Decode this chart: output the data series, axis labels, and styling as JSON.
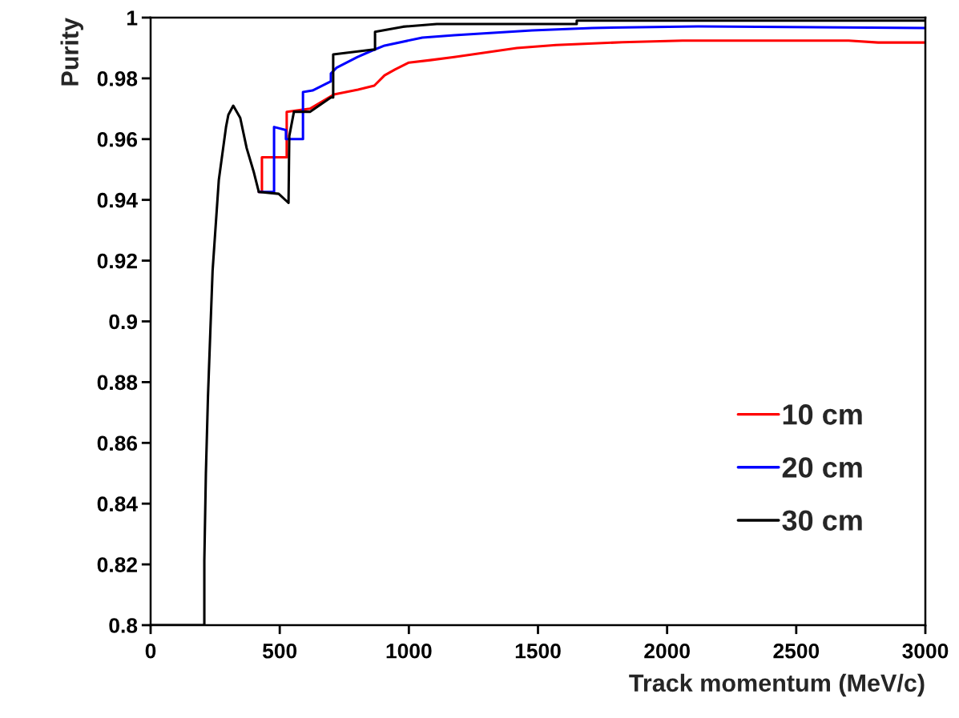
{
  "chart_data": {
    "type": "line",
    "xlabel": "Track momentum (MeV/c)",
    "ylabel": "Purity",
    "xlim": [
      0,
      3000
    ],
    "xticks": [
      0,
      500,
      1000,
      1500,
      2000,
      2500,
      3000
    ],
    "ylim": [
      0.8,
      1
    ],
    "yticks": [
      {
        "value": 0.8,
        "label": "0.8"
      },
      0.82,
      0.84,
      0.86,
      0.88,
      {
        "value": 0.9,
        "label": "0.9"
      },
      0.92,
      0.94,
      0.96,
      0.98,
      {
        "value": 1,
        "label": "1"
      }
    ],
    "grid": false,
    "legend": "bottom right",
    "marker": "none",
    "line_style": "solid",
    "series": [
      {
        "name": "10 cm",
        "color": "#ff0000",
        "x": [
          419,
          431,
          431,
          527,
          527,
          617,
          710,
          803,
          866,
          906,
          946,
          1000,
          1083,
          1176,
          1418,
          1570,
          1827,
          2060,
          2352,
          2703,
          2817,
          3000
        ],
        "values": [
          0.9426,
          0.9426,
          0.954,
          0.954,
          0.969,
          0.97,
          0.9747,
          0.9763,
          0.9776,
          0.981,
          0.9829,
          0.9852,
          0.986,
          0.987,
          0.99,
          0.991,
          0.9919,
          0.9924,
          0.9924,
          0.9924,
          0.9918,
          0.9918
        ]
      },
      {
        "name": "20 cm",
        "color": "#0000ff",
        "x": [
          419,
          478,
          478,
          524,
          524,
          590,
          590,
          627,
          698,
          698,
          720,
          800,
          859,
          906,
          1052,
          1176,
          1477,
          1710,
          2120,
          3000
        ],
        "values": [
          0.9426,
          0.9426,
          0.964,
          0.963,
          0.96,
          0.96,
          0.9755,
          0.976,
          0.979,
          0.9816,
          0.9835,
          0.987,
          0.9892,
          0.9908,
          0.9934,
          0.9942,
          0.9958,
          0.9966,
          0.9971,
          0.9966
        ]
      },
      {
        "name": "30 cm",
        "color": "#000000",
        "x": [
          0,
          208,
          208,
          214,
          222,
          232,
          240,
          264,
          292,
          301,
          320,
          347,
          372,
          400,
          419,
          496,
          534,
          537,
          555,
          617,
          698,
          707,
          707,
          866,
          869,
          869,
          977,
          1108,
          1650,
          1650,
          3000
        ],
        "values": [
          0.8,
          0.8,
          0.8213,
          0.85,
          0.875,
          0.8985,
          0.9167,
          0.9465,
          0.964,
          0.968,
          0.971,
          0.967,
          0.957,
          0.949,
          0.9426,
          0.942,
          0.939,
          0.961,
          0.969,
          0.969,
          0.9737,
          0.9737,
          0.9879,
          0.9895,
          0.9895,
          0.9953,
          0.997,
          0.9979,
          0.9979,
          0.999,
          0.999
        ]
      }
    ]
  }
}
